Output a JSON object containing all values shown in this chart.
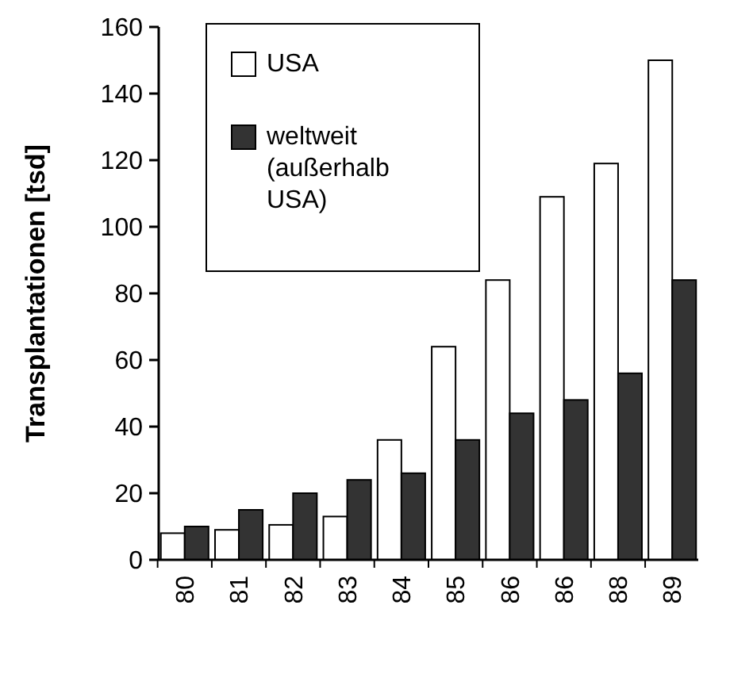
{
  "chart_data": {
    "type": "bar",
    "ylabel": "Transplantationen [tsd]",
    "categories": [
      "80",
      "81",
      "82",
      "83",
      "84",
      "85",
      "86",
      "86",
      "88",
      "89"
    ],
    "series": [
      {
        "name": "USA",
        "color": "#ffffff",
        "values": [
          8,
          9,
          10.5,
          13,
          36,
          64,
          84,
          109,
          119,
          150
        ]
      },
      {
        "name": "weltweit (außerhalb USA)",
        "color": "#333333",
        "values": [
          10,
          15,
          20,
          24,
          26,
          36,
          44,
          48,
          56,
          84
        ]
      }
    ],
    "ylim": [
      0,
      160
    ],
    "yticks": [
      0,
      20,
      40,
      60,
      80,
      100,
      120,
      140,
      160
    ],
    "grid": false,
    "legend": "top left"
  }
}
